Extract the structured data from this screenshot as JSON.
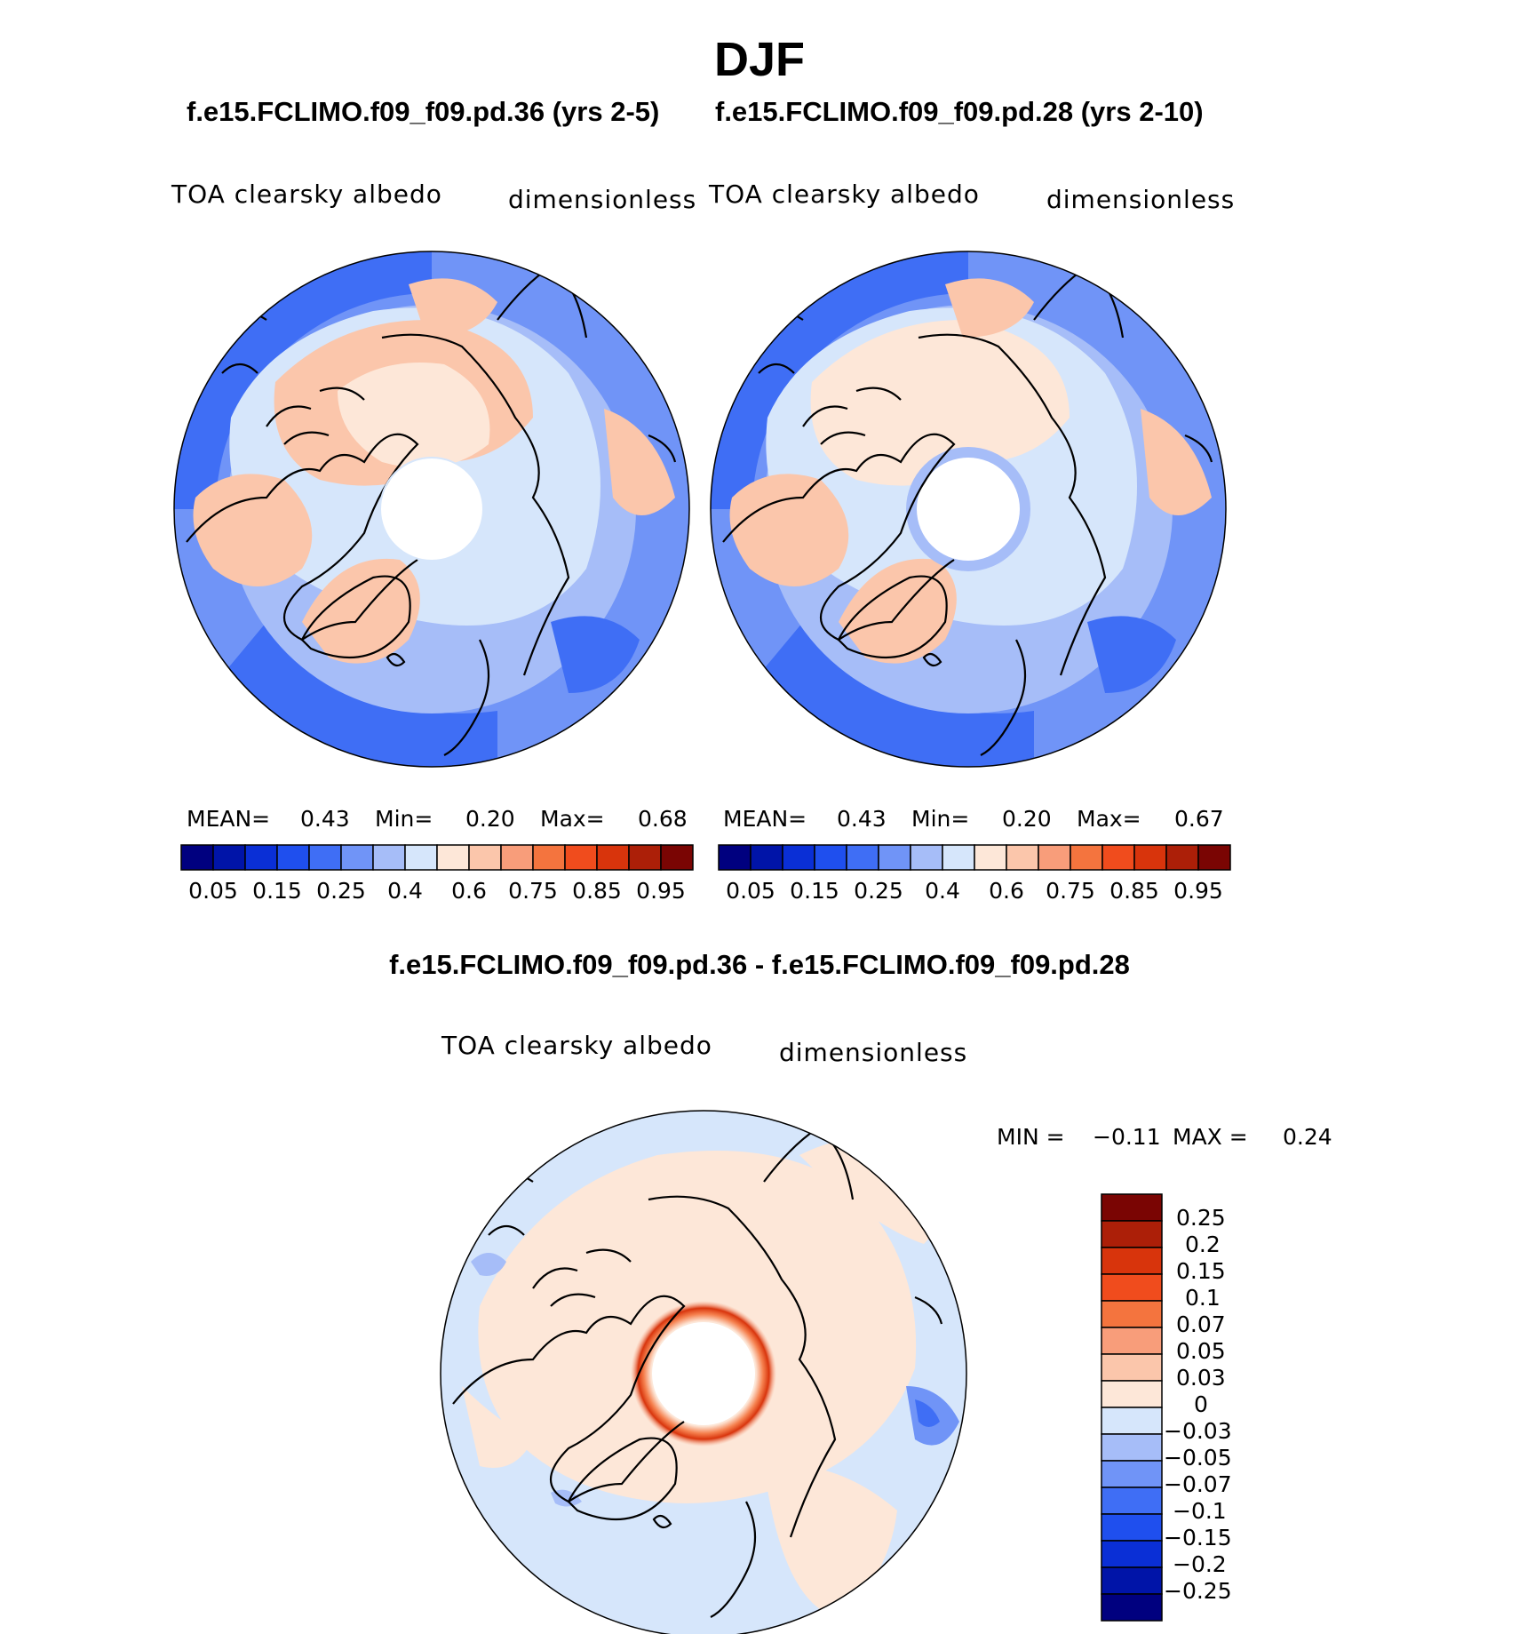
{
  "title": "DJF",
  "case_titles": {
    "left": "f.e15.FCLIMO.f09_f09.pd.36 (yrs 2-5)",
    "right": "f.e15.FCLIMO.f09_f09.pd.28 (yrs 2-10)"
  },
  "diff_title": "f.e15.FCLIMO.f09_f09.pd.36 - f.e15.FCLIMO.f09_f09.pd.28",
  "panels": {
    "left": {
      "variable": "TOA clearsky albedo",
      "units": "dimensionless",
      "stats": {
        "mean_label": "MEAN=",
        "mean": "0.43",
        "min_label": "Min=",
        "min": "0.20",
        "max_label": "Max=",
        "max": "0.68"
      }
    },
    "right": {
      "variable": "TOA clearsky albedo",
      "units": "dimensionless",
      "stats": {
        "mean_label": "MEAN=",
        "mean": "0.43",
        "min_label": "Min=",
        "min": "0.20",
        "max_label": "Max=",
        "max": "0.67"
      }
    },
    "diff": {
      "variable": "TOA clearsky albedo",
      "units": "dimensionless",
      "stats": {
        "min_label": "MIN =",
        "min": "−0.11",
        "max_label": "MAX =",
        "max": "0.24"
      }
    }
  },
  "colorbar": {
    "colors": [
      "#00007f",
      "#0014a8",
      "#0a2fd6",
      "#1f4fee",
      "#3f6ef5",
      "#7094f7",
      "#a6bdf8",
      "#d6e6fb",
      "#fde7d8",
      "#fbc6ab",
      "#f89d7a",
      "#f4743e",
      "#f04c1d",
      "#d8340c",
      "#ac1f08",
      "#7a0503"
    ],
    "tick_labels": [
      "0.05",
      "0.15",
      "0.25",
      "0.4",
      "0.6",
      "0.75",
      "0.85",
      "0.95"
    ]
  },
  "diff_colorbar": {
    "colors_top_to_bottom": [
      "#7a0503",
      "#ac1f08",
      "#d8340c",
      "#f04c1d",
      "#f4743e",
      "#f89d7a",
      "#fbc6ab",
      "#fde7d8",
      "#d6e6fb",
      "#a6bdf8",
      "#7094f7",
      "#3f6ef5",
      "#1f4fee",
      "#0a2fd6",
      "#0014a8",
      "#00007f"
    ],
    "tick_labels": [
      "0.25",
      "0.2",
      "0.15",
      "0.1",
      "0.07",
      "0.05",
      "0.03",
      "0",
      "−0.03",
      "−0.05",
      "−0.07",
      "−0.1",
      "−0.15",
      "−0.2",
      "−0.25"
    ]
  }
}
